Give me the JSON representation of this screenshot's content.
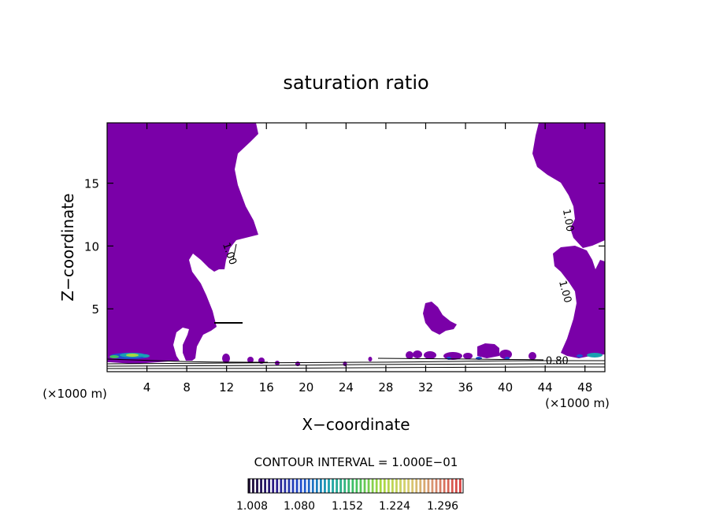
{
  "chart_data": {
    "type": "contour",
    "title": "saturation ratio",
    "xlabel": "X−coordinate",
    "ylabel": "Z−coordinate",
    "x_unit_label": "(×1000 m)",
    "z_unit_label": "(×1000 m)",
    "xlim": [
      0,
      50
    ],
    "ylim": [
      0,
      19.8
    ],
    "x_ticks": [
      4,
      8,
      12,
      16,
      20,
      24,
      28,
      32,
      36,
      40,
      44,
      48
    ],
    "y_ticks": [
      5,
      10,
      15
    ],
    "contour_interval_text": "CONTOUR INTERVAL = 1.000E−01",
    "contour_labels": [
      {
        "text": "1.00",
        "x": 12.0,
        "z": 9.3
      },
      {
        "text": "1.00",
        "x": 46.0,
        "z": 12.0
      },
      {
        "text": "1.00",
        "x": 45.7,
        "z": 6.3
      },
      {
        "text": "0.80",
        "x": 45.2,
        "z": 0.6
      }
    ],
    "colorbar": {
      "tick_labels": [
        "1.008",
        "1.080",
        "1.152",
        "1.224",
        "1.296"
      ],
      "min": 1.0,
      "max": 1.35,
      "colors": [
        "#1a0a2e",
        "#2a1a8a",
        "#1f4fd0",
        "#1aa0b0",
        "#3fc060",
        "#a8d840",
        "#d8d070",
        "#d89070",
        "#d84040"
      ]
    },
    "fill_color": "#7a00a8"
  }
}
